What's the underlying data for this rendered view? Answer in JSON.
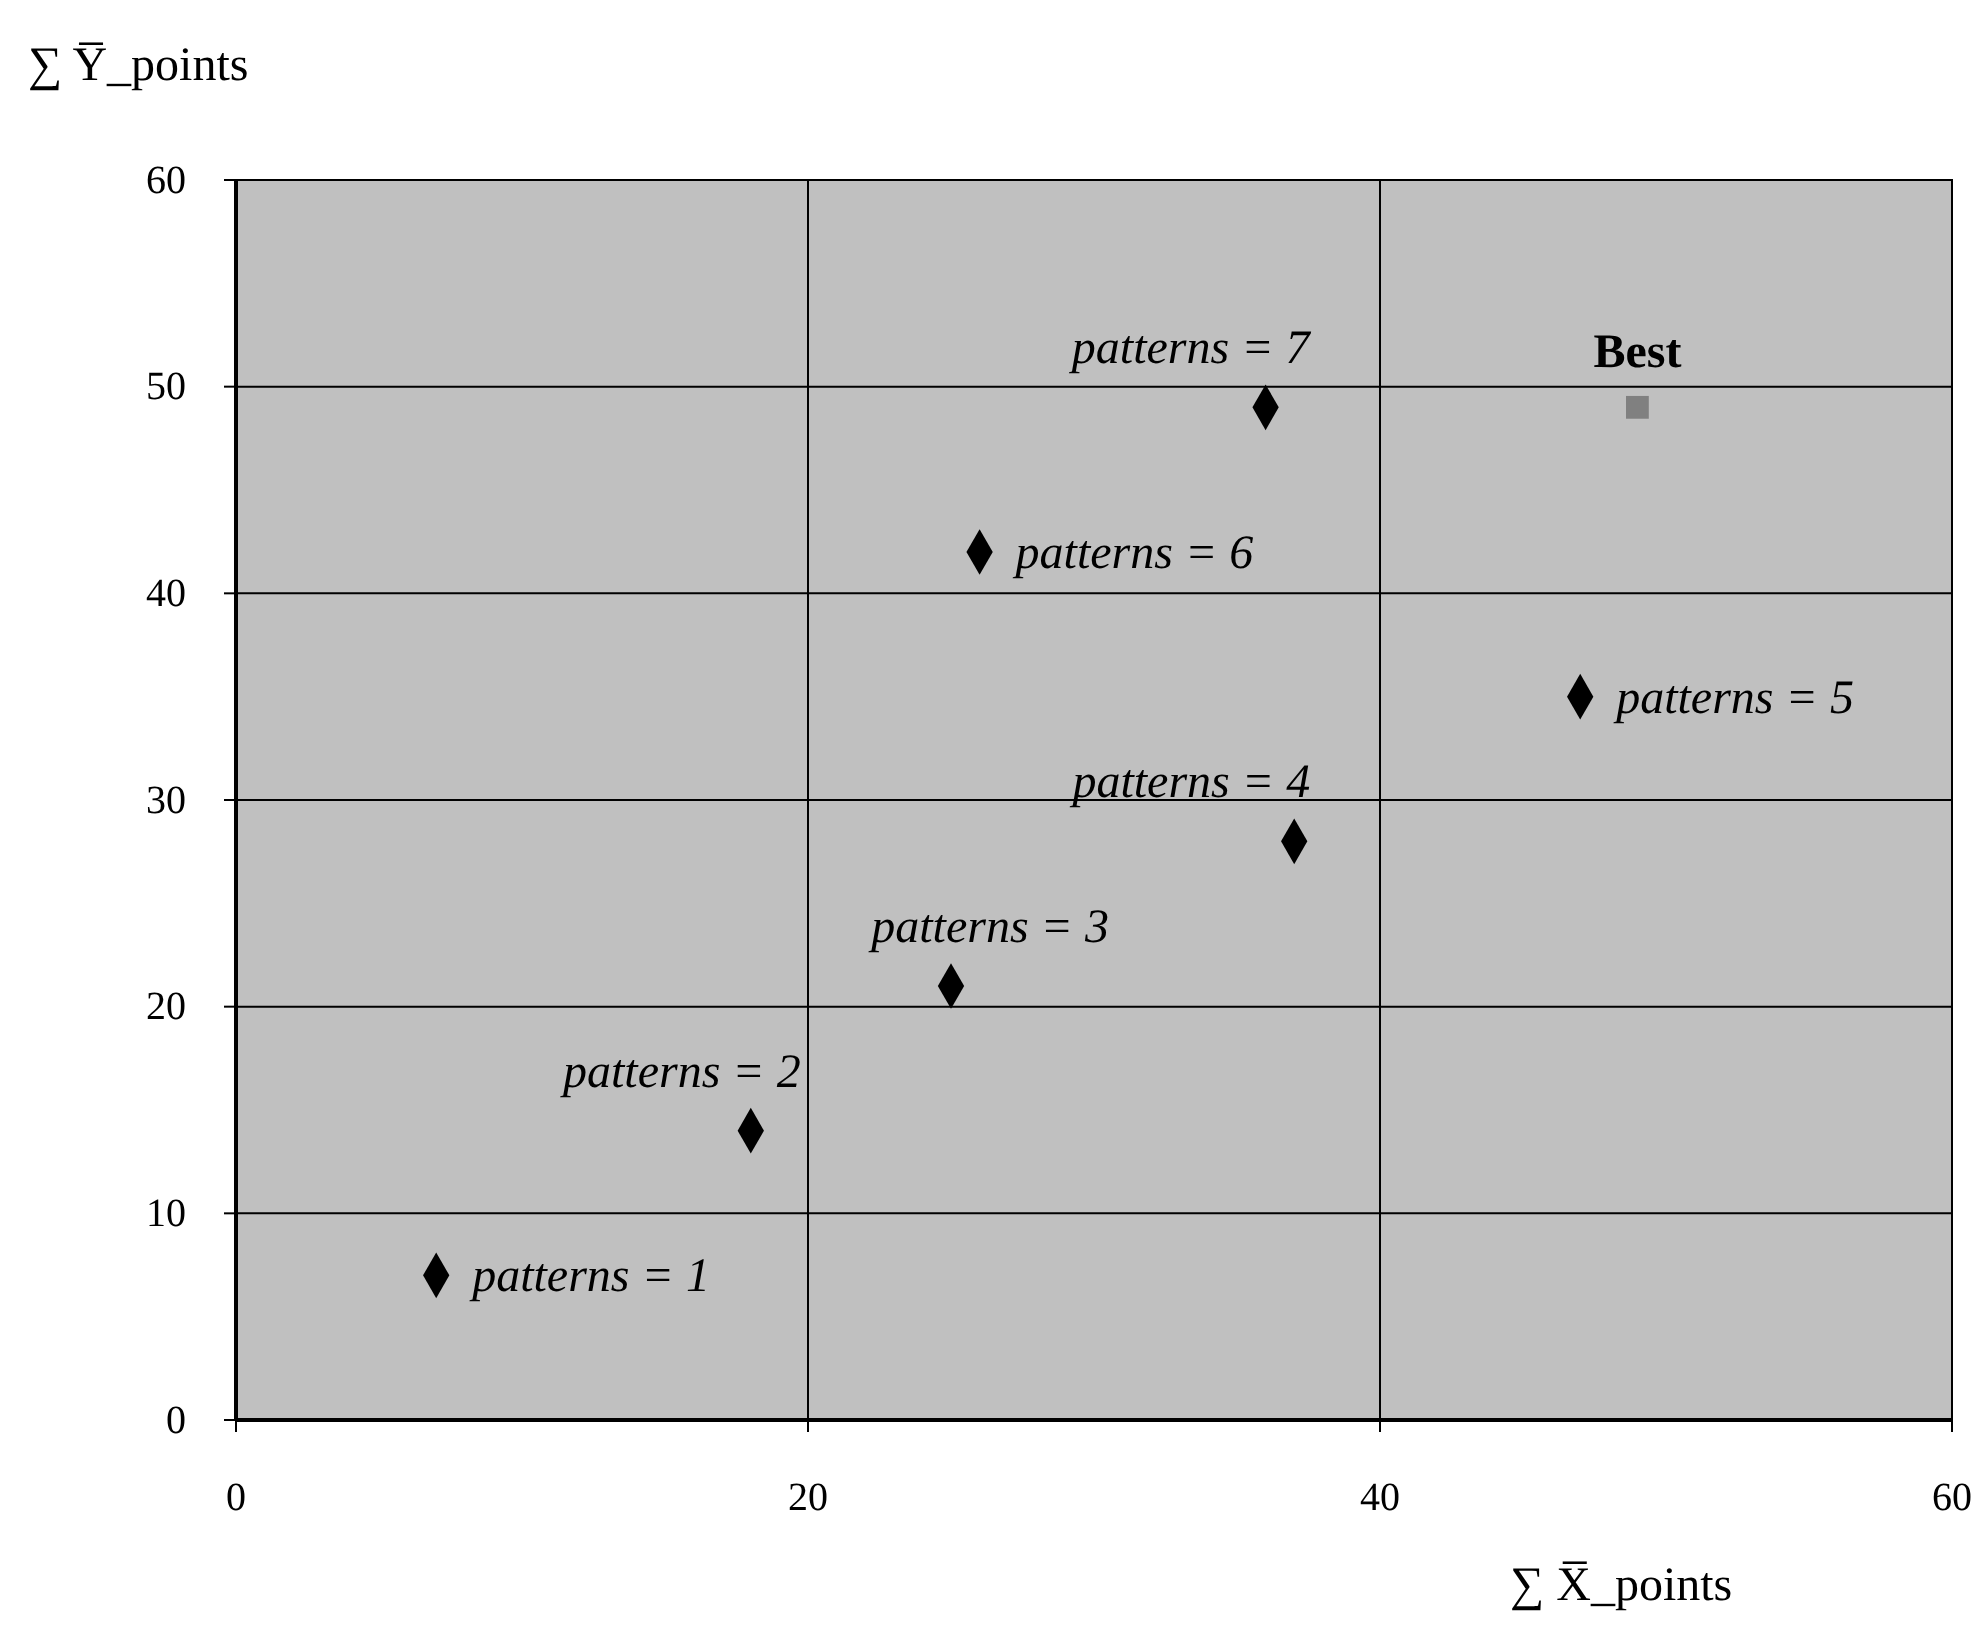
{
  "chart_data": {
    "type": "scatter",
    "xlabel": "∑ X̅_points",
    "ylabel": "∑ Y̅_points",
    "xlim": [
      0,
      60
    ],
    "xticks": [
      0,
      20,
      40,
      60
    ],
    "ylim": [
      0,
      60
    ],
    "yticks": [
      0,
      10,
      20,
      30,
      40,
      50,
      60
    ],
    "grid": true,
    "series": [
      {
        "color": "#000000",
        "marker": "diamond",
        "x": [
          7,
          18,
          25,
          37,
          47,
          26,
          36
        ],
        "values": [
          7,
          14,
          21,
          28,
          35,
          42,
          49
        ]
      },
      {
        "name": "Best",
        "color": "#808080",
        "marker": "square",
        "x": [
          49
        ],
        "values": [
          49
        ]
      }
    ],
    "annotations": [
      {
        "text": "patterns = 1",
        "x": 7,
        "y": 7
      },
      {
        "text": "patterns = 2",
        "x": 18,
        "y": 14
      },
      {
        "text": "patterns = 3",
        "x": 25,
        "y": 21
      },
      {
        "text": "patterns = 4",
        "x": 37,
        "y": 28
      },
      {
        "text": "patterns = 5",
        "x": 47,
        "y": 35
      },
      {
        "text": "patterns = 6",
        "x": 26,
        "y": 42
      },
      {
        "text": "patterns = 7",
        "x": 36,
        "y": 49
      }
    ]
  }
}
